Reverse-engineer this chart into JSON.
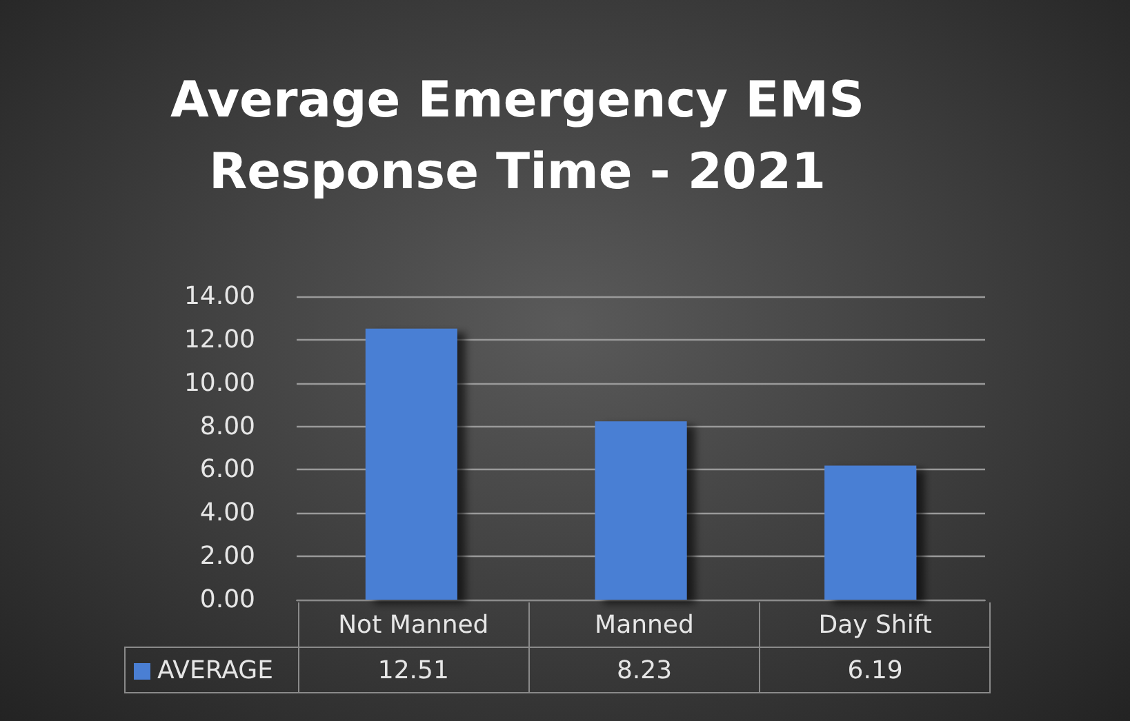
{
  "chart_data": {
    "type": "bar",
    "title": "Average Emergency EMS\nResponse Time - 2021",
    "categories": [
      "Not Manned",
      "Manned",
      "Day Shift"
    ],
    "series": [
      {
        "name": "AVERAGE",
        "color": "#4a7fd4",
        "values": [
          12.51,
          8.23,
          6.19
        ]
      }
    ],
    "ylim": [
      0,
      14
    ],
    "yticks": [
      {
        "value": 0,
        "label": "0.00"
      },
      {
        "value": 2,
        "label": "2.00"
      },
      {
        "value": 4,
        "label": "4.00"
      },
      {
        "value": 6,
        "label": "6.00"
      },
      {
        "value": 8,
        "label": "8.00"
      },
      {
        "value": 10,
        "label": "10.00"
      },
      {
        "value": 12,
        "label": "12.00"
      },
      {
        "value": 14,
        "label": "14.00"
      }
    ],
    "grid": "y",
    "legend": "bottom",
    "data_labels": true
  }
}
